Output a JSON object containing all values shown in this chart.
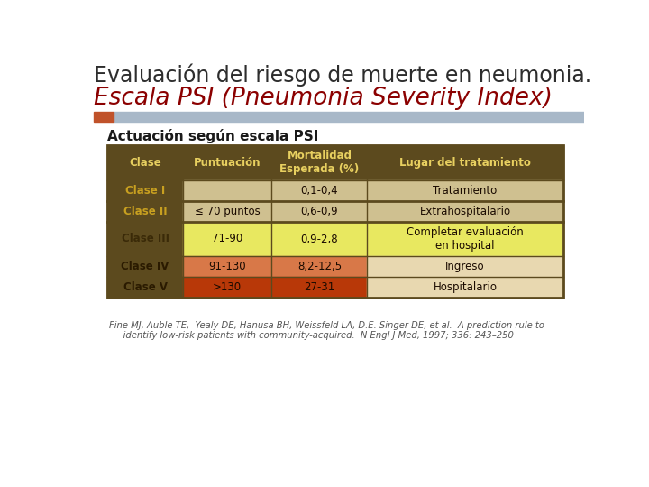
{
  "title_line1": "Evaluación del riesgo de muerte en neumonia.",
  "title_line2": "Escala PSI (Pneumonia Severity Index)",
  "subtitle": "Actuación según escala PSI",
  "title_color_line1": "#2d2d2d",
  "title_color_line2": "#8B0000",
  "subtitle_color": "#1a1a1a",
  "bg_color": "#ffffff",
  "accent_orange": "#c0522a",
  "accent_blue": "#a8b8c8",
  "header_bg": "#5c4a1e",
  "header_text_color": "#e8d060",
  "col_headers": [
    "Clase",
    "Puntuación",
    "Mortalidad\nEsperada (%)",
    "Lugar del tratamiento"
  ],
  "rows": [
    {
      "clase": "Clase I",
      "clase_color": "#c8a020",
      "clase_bold": false,
      "puntuacion": "",
      "punt_bg": "#cfc090",
      "mortalidad": "0,1-0,4",
      "mort_bg": "#cfc090",
      "lugar": "Tratamiento",
      "lugar_bg": "#cfc090"
    },
    {
      "clase": "Clase II",
      "clase_color": "#c8a020",
      "clase_bold": false,
      "puntuacion": "≤ 70 puntos",
      "punt_bg": "#cfc090",
      "mortalidad": "0,6-0,9",
      "mort_bg": "#cfc090",
      "lugar": "Extrahospitalario",
      "lugar_bg": "#cfc090"
    },
    {
      "clase": "Clase III",
      "clase_color": "#3a2a08",
      "clase_bold": true,
      "puntuacion": "71-90",
      "punt_bg": "#e8e860",
      "mortalidad": "0,9-2,8",
      "mort_bg": "#e8e860",
      "lugar": "Completar evaluación\nen hospital",
      "lugar_bg": "#e8e860"
    },
    {
      "clase": "Clase IV",
      "clase_color": "#2a1a00",
      "clase_bold": true,
      "puntuacion": "91-130",
      "punt_bg": "#d87848",
      "mortalidad": "8,2-12,5",
      "mort_bg": "#d87848",
      "lugar": "Ingreso",
      "lugar_bg": "#e8d8b0"
    },
    {
      "clase": "Clase V",
      "clase_color": "#2a1a00",
      "clase_bold": true,
      "puntuacion": ">130",
      "punt_bg": "#b83808",
      "mortalidad": "27-31",
      "mort_bg": "#b83808",
      "lugar": "Hospitalario",
      "lugar_bg": "#e8d8b0"
    }
  ],
  "thick_borders_after": [
    1,
    2
  ],
  "footer_line1": "Fine MJ, Auble TE,  Yealy DE, Hanusa BH, Weissfeld LA, D.E. Singer DE, et al.  A prediction rule to",
  "footer_line2": "     identify low-risk patients with community-acquired.  N Engl J Med, 1997; 336: 243–250",
  "table_border_color": "#5c4a1e"
}
